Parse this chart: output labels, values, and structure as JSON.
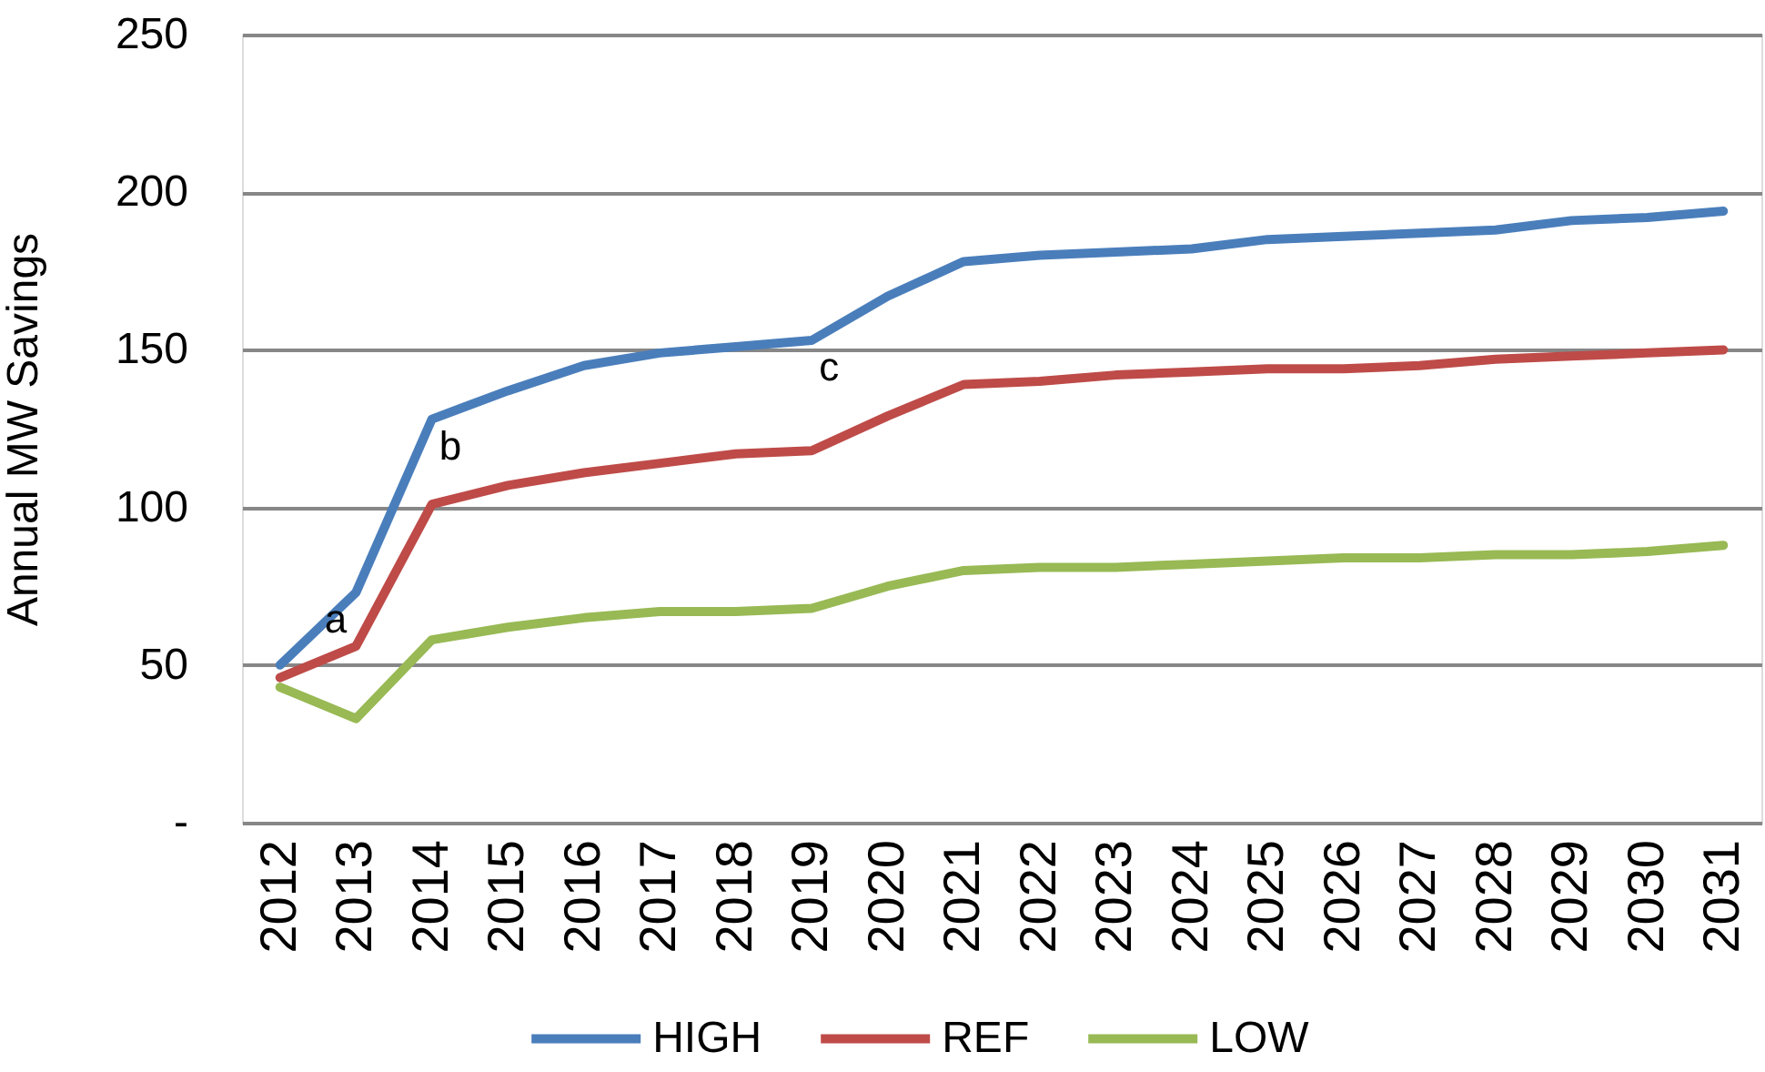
{
  "chart_data": {
    "type": "line",
    "ylabel": "Annual MW Savings",
    "categories": [
      "2012",
      "2013",
      "2014",
      "2015",
      "2016",
      "2017",
      "2018",
      "2019",
      "2020",
      "2021",
      "2022",
      "2023",
      "2024",
      "2025",
      "2026",
      "2027",
      "2028",
      "2029",
      "2030",
      "2031"
    ],
    "series": [
      {
        "name": "HIGH",
        "color": "#4a7ebb",
        "values": [
          50,
          73,
          128,
          137,
          145,
          149,
          151,
          153,
          167,
          178,
          180,
          181,
          182,
          185,
          186,
          187,
          188,
          191,
          192,
          194
        ]
      },
      {
        "name": "REF",
        "color": "#be4b48",
        "values": [
          46,
          56,
          101,
          107,
          111,
          114,
          117,
          118,
          129,
          139,
          140,
          142,
          143,
          144,
          144,
          145,
          147,
          148,
          149,
          150
        ]
      },
      {
        "name": "LOW",
        "color": "#98b954",
        "values": [
          43,
          33,
          58,
          62,
          65,
          67,
          67,
          68,
          75,
          80,
          81,
          81,
          82,
          83,
          84,
          84,
          85,
          85,
          86,
          88
        ]
      }
    ],
    "ylim": [
      0,
      250
    ],
    "yticks": [
      {
        "value": 0,
        "label": "-"
      },
      50,
      100,
      150,
      200,
      250
    ],
    "grid": "y",
    "legend": "bottom",
    "line_style": "solid",
    "annotations": [
      {
        "text": "a",
        "x": "2013",
        "y": 73
      },
      {
        "text": "b",
        "x": "2014",
        "y": 128
      },
      {
        "text": "c",
        "x": "2019",
        "y": 153
      }
    ]
  }
}
